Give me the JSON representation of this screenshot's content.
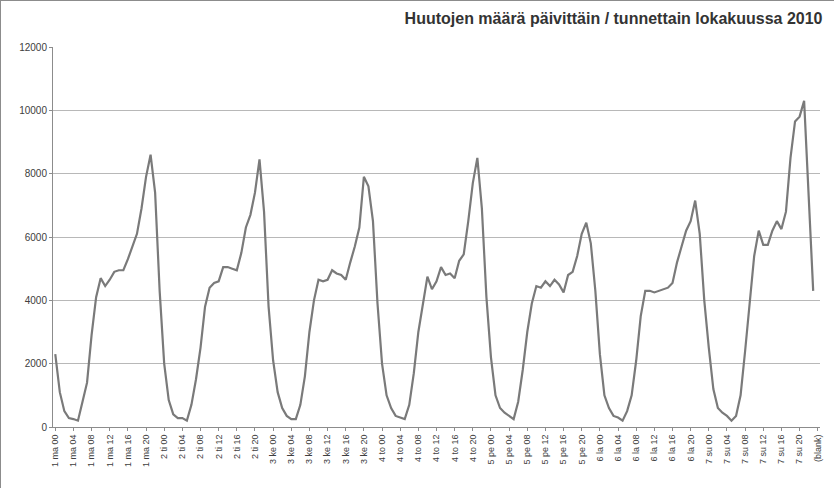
{
  "chart_data": {
    "type": "line",
    "title": "Huutojen määrä päivittäin / tunnettain lokakuussa 2010",
    "categories": [
      "1 ma 00",
      null,
      null,
      null,
      "1 ma 04",
      null,
      null,
      null,
      "1 ma 08",
      null,
      null,
      null,
      "1 ma 12",
      null,
      null,
      null,
      "1 ma 16",
      null,
      null,
      null,
      "1 ma 20",
      null,
      null,
      null,
      "2 ti 00",
      null,
      null,
      null,
      "2 ti 04",
      null,
      null,
      null,
      "2 ti 08",
      null,
      null,
      null,
      "2 ti 12",
      null,
      null,
      null,
      "2 ti 16",
      null,
      null,
      null,
      "2 ti 20",
      null,
      null,
      null,
      "3 ke 00",
      null,
      null,
      null,
      "3 ke 04",
      null,
      null,
      null,
      "3 ke 08",
      null,
      null,
      null,
      "3 ke 12",
      null,
      null,
      null,
      "3 ke 16",
      null,
      null,
      null,
      "3 ke 20",
      null,
      null,
      null,
      "4 to 00",
      null,
      null,
      null,
      "4 to 04",
      null,
      null,
      null,
      "4 to 08",
      null,
      null,
      null,
      "4 to 12",
      null,
      null,
      null,
      "4 to 16",
      null,
      null,
      null,
      "4 to 20",
      null,
      null,
      null,
      "5 pe 00",
      null,
      null,
      null,
      "5 pe 04",
      null,
      null,
      null,
      "5 pe 08",
      null,
      null,
      null,
      "5 pe 12",
      null,
      null,
      null,
      "5 pe 16",
      null,
      null,
      null,
      "5 pe 20",
      null,
      null,
      null,
      "6 la 00",
      null,
      null,
      null,
      "6 la 04",
      null,
      null,
      null,
      "6 la 08",
      null,
      null,
      null,
      "6 la 12",
      null,
      null,
      null,
      "6 la 16",
      null,
      null,
      null,
      "6 la 20",
      null,
      null,
      null,
      "7 su 00",
      null,
      null,
      null,
      "7 su 04",
      null,
      null,
      null,
      "7 su 08",
      null,
      null,
      null,
      "7 su 12",
      null,
      null,
      null,
      "7 su 16",
      null,
      null,
      null,
      "7 su 20",
      null,
      null,
      null,
      "(blank)"
    ],
    "values": [
      2300,
      1100,
      500,
      280,
      250,
      200,
      800,
      1400,
      2900,
      4100,
      4700,
      4450,
      4650,
      4900,
      4950,
      4950,
      5300,
      5700,
      6100,
      6900,
      7900,
      8600,
      7400,
      4300,
      2000,
      850,
      400,
      280,
      280,
      200,
      700,
      1500,
      2500,
      3800,
      4400,
      4550,
      4600,
      5050,
      5050,
      5000,
      4950,
      5500,
      6300,
      6700,
      7400,
      8450,
      6800,
      3800,
      2100,
      1100,
      600,
      350,
      250,
      250,
      700,
      1600,
      3000,
      4000,
      4650,
      4600,
      4650,
      4950,
      4850,
      4800,
      4650,
      5200,
      5700,
      6300,
      7900,
      7600,
      6500,
      3900,
      2000,
      1000,
      600,
      350,
      300,
      250,
      700,
      1700,
      3000,
      3900,
      4750,
      4350,
      4600,
      5050,
      4800,
      4850,
      4700,
      5250,
      5450,
      6500,
      7700,
      8500,
      6900,
      4100,
      2200,
      1000,
      600,
      450,
      350,
      250,
      800,
      1800,
      3000,
      3900,
      4450,
      4400,
      4600,
      4450,
      4650,
      4500,
      4250,
      4800,
      4900,
      5400,
      6100,
      6450,
      5800,
      4300,
      2300,
      1000,
      600,
      350,
      300,
      200,
      500,
      1000,
      2100,
      3500,
      4300,
      4300,
      4250,
      4300,
      4350,
      4400,
      4550,
      5200,
      5700,
      6200,
      6500,
      7150,
      6100,
      4000,
      2500,
      1200,
      600,
      450,
      350,
      200,
      350,
      1000,
      2400,
      3800,
      5400,
      6200,
      5750,
      5750,
      6200,
      6500,
      6250,
      6800,
      8500,
      9650,
      9800,
      10300,
      7500,
      4300,
      null
    ],
    "color": "#7a7a7a",
    "ylim": [
      0,
      12000
    ],
    "yticks": [
      0,
      2000,
      4000,
      6000,
      8000,
      10000,
      12000
    ],
    "grid": true
  }
}
